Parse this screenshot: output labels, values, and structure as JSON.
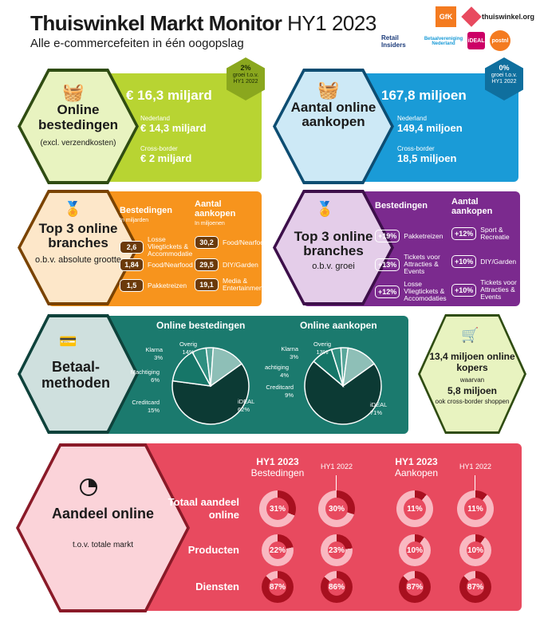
{
  "header": {
    "title": "Thuiswinkel Markt Monitor",
    "period": "HY1 2023",
    "subtitle": "Alle e-commercefeiten in één oogopslag",
    "logos": [
      "GfK",
      "thuiswinkel.org",
      "Retail Insiders",
      "Betaalvereniging Nederland",
      "iDEAL",
      "postnl"
    ]
  },
  "online_spend": {
    "title": "Online bestedingen",
    "note": "(excl. verzendkosten)",
    "total": "€ 16,3 miljard",
    "nl_label": "Nederland",
    "nl_value": "€ 14,3 miljard",
    "cb_label": "Cross-border",
    "cb_value": "€ 2 miljard",
    "growth_pct": "2%",
    "growth_text": "groei t.o.v. HY1 2022"
  },
  "online_purchases": {
    "title": "Aantal online aankopen",
    "total": "167,8 miljoen",
    "nl_label": "Nederland",
    "nl_value": "149,4 miljoen",
    "cb_label": "Cross-border",
    "cb_value": "18,5 miljoen",
    "growth_pct": "0%",
    "growth_text": "groei t.o.v. HY1 2022"
  },
  "top3_size": {
    "title": "Top 3 online branches",
    "subtitle": "o.b.v. absolute grootte",
    "col1_title": "Bestedingen",
    "col1_unit": "In miljarden",
    "col2_title": "Aantal aankopen",
    "col2_unit": "In miljoenen",
    "col1": [
      {
        "value": "2,6",
        "label": "Losse Vliegtickets & Accommodatie"
      },
      {
        "value": "1,84",
        "label": "Food/Nearfood"
      },
      {
        "value": "1,5",
        "label": "Pakketreizen"
      }
    ],
    "col2": [
      {
        "value": "30,2",
        "label": "Food/Nearfood"
      },
      {
        "value": "29,5",
        "label": "DIY/Garden"
      },
      {
        "value": "19,1",
        "label": "Media & Entertainment"
      }
    ]
  },
  "top3_growth": {
    "title": "Top 3 online branches",
    "subtitle": "o.b.v. groei",
    "col1_title": "Bestedingen",
    "col2_title": "Aantal aankopen",
    "col1": [
      {
        "value": "+19%",
        "label": "Pakketreizen"
      },
      {
        "value": "+13%",
        "label": "Tickets voor Attracties & Events"
      },
      {
        "value": "+12%",
        "label": "Losse Vliegtickets & Accomodaties"
      }
    ],
    "col2": [
      {
        "value": "+12%",
        "label": "Sport & Recreatie"
      },
      {
        "value": "+10%",
        "label": "DIY/Garden"
      },
      {
        "value": "+10%",
        "label": "Tickets voor Attracties & Events"
      }
    ]
  },
  "payment": {
    "title": "Betaal-methoden",
    "pie1_title": "Online bestedingen",
    "pie2_title": "Online aankopen"
  },
  "shoppers": {
    "total": "13,4 miljoen online kopers",
    "waarvan": "waarvan",
    "cb_value": "5,8 miljoen",
    "cb_text": "ook cross-border shoppen"
  },
  "share": {
    "title": "Aandeel online",
    "subtitle": "t.o.v. totale markt",
    "col_spend_title": "HY1 2023",
    "col_spend_sub": "Bestedingen",
    "col_spend_prev": "HY1 2022",
    "col_buy_title": "HY1 2023",
    "col_buy_sub": "Aankopen",
    "col_buy_prev": "HY1 2022",
    "rows": [
      {
        "label": "Totaal aandeel online",
        "values": [
          "31%",
          "30%",
          "11%",
          "11%"
        ]
      },
      {
        "label": "Producten",
        "values": [
          "22%",
          "23%",
          "10%",
          "10%"
        ]
      },
      {
        "label": "Diensten",
        "values": [
          "87%",
          "86%",
          "87%",
          "87%"
        ]
      }
    ],
    "fractions": [
      [
        0.31,
        0.3,
        0.11,
        0.11
      ],
      [
        0.22,
        0.23,
        0.1,
        0.1
      ],
      [
        0.87,
        0.86,
        0.87,
        0.87
      ]
    ]
  },
  "chart_data": [
    {
      "type": "pie",
      "title": "Online bestedingen",
      "categories": [
        "iDEAL",
        "Creditcard",
        "Machtiging",
        "Klarna",
        "Overig"
      ],
      "labels": [
        "iDEAL",
        "Creditcard",
        "Machtiging",
        "Klarna",
        "Overig"
      ],
      "values": [
        62,
        15,
        6,
        3,
        14
      ],
      "value_labels": [
        "62%",
        "15%",
        "6%",
        "3%",
        "14%"
      ]
    },
    {
      "type": "pie",
      "title": "Online aankopen",
      "categories": [
        "iDEAL",
        "Creditcard",
        "Machtiging",
        "Klarna",
        "Overig"
      ],
      "labels": [
        "iDEAL",
        "Creditcard",
        "Machtiging",
        "Klarna",
        "Overig"
      ],
      "values": [
        71,
        9,
        4,
        3,
        13
      ],
      "value_labels": [
        "71%",
        "9%",
        "4%",
        "3%",
        "13%"
      ]
    }
  ],
  "colors": {
    "green": "#b8d432",
    "blue": "#1a9bd7",
    "orange": "#f7941d",
    "purple": "#7b2a8e",
    "teal": "#1b7a6e",
    "red": "#e84a5f"
  }
}
